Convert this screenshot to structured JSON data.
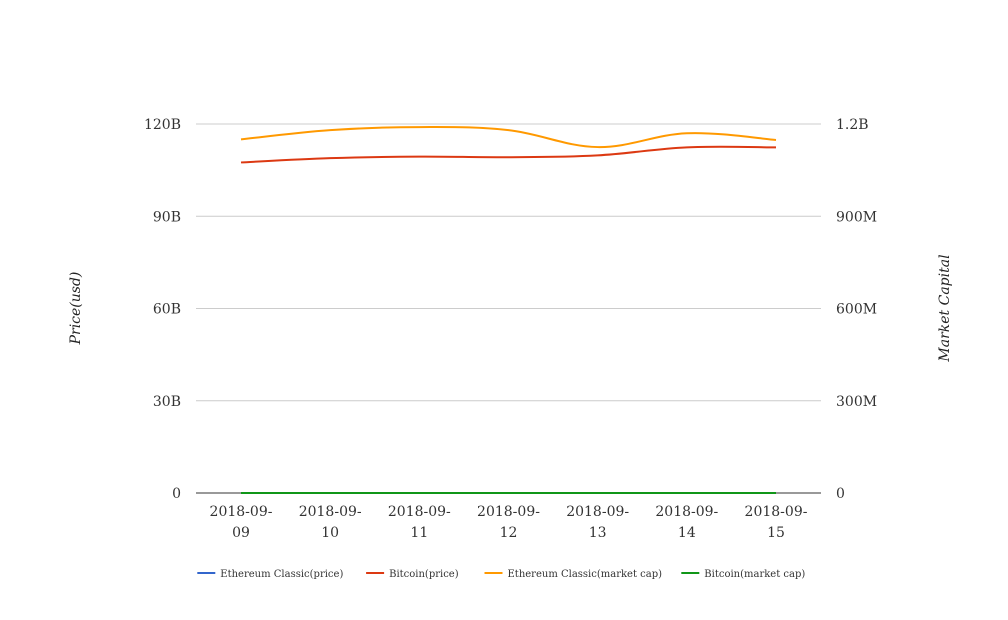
{
  "chart_data": {
    "type": "line",
    "title": "",
    "x": [
      "2018-09-09",
      "2018-09-10",
      "2018-09-11",
      "2018-09-12",
      "2018-09-13",
      "2018-09-14",
      "2018-09-15"
    ],
    "x_tick_labels": [
      [
        "2018-09-",
        "09"
      ],
      [
        "2018-09-",
        "10"
      ],
      [
        "2018-09-",
        "11"
      ],
      [
        "2018-09-",
        "12"
      ],
      [
        "2018-09-",
        "13"
      ],
      [
        "2018-09-",
        "14"
      ],
      [
        "2018-09-",
        "15"
      ]
    ],
    "y_left": {
      "label": "Price(usd)",
      "min": 0,
      "max": 120000000000,
      "ticks": [
        0,
        30000000000,
        60000000000,
        90000000000,
        120000000000
      ],
      "tick_labels": [
        "0",
        "30B",
        "60B",
        "90B",
        "120B"
      ]
    },
    "y_right": {
      "label": "Market Capital",
      "min": 0,
      "max": 1200000000,
      "ticks": [
        0,
        300000000,
        600000000,
        900000000,
        1200000000
      ],
      "tick_labels": [
        "0",
        "300M",
        "600M",
        "900M",
        "1.2B"
      ]
    },
    "grid": true,
    "legend_position": "bottom",
    "series": [
      {
        "name": "Ethereum Classic(price)",
        "axis": "left",
        "color": "#3366cc",
        "values": [
          11.0,
          11.3,
          11.5,
          11.2,
          11.1,
          11.6,
          11.3
        ]
      },
      {
        "name": "Bitcoin(price)",
        "axis": "right",
        "color": "#dc3912",
        "values": [
          1075000000,
          1089000000,
          1094000000,
          1092000000,
          1098000000,
          1124000000,
          1124000000
        ]
      },
      {
        "name": "Ethereum Classic(market cap)",
        "axis": "left",
        "color": "#ff9900",
        "values": [
          115000000000,
          118000000000,
          119000000000,
          118000000000,
          112500000000,
          117000000000,
          114800000000
        ]
      },
      {
        "name": "Bitcoin(market cap)",
        "axis": "right",
        "color": "#109618",
        "values": [
          6400,
          6500,
          6300,
          6350,
          6500,
          6550,
          6500
        ]
      }
    ]
  }
}
